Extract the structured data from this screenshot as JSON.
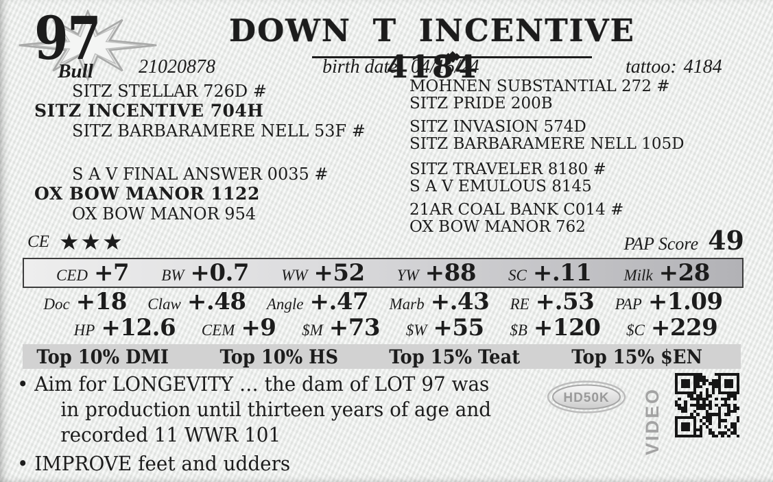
{
  "lot": {
    "number": "97",
    "sex": "Bull"
  },
  "header": {
    "title": "DOWN T INCENTIVE 4184",
    "registration": "21020878",
    "birth_date_label": "birth date:",
    "birth_date": "04/16/24",
    "tattoo_label": "tattoo:",
    "tattoo": "4184"
  },
  "pedigree": {
    "left": [
      {
        "text": "SITZ STELLAR 726D #"
      },
      {
        "text": "SITZ INCENTIVE 704H"
      },
      {
        "text": "SITZ BARBARAMERE NELL 53F #"
      },
      {
        "text": "S A V FINAL ANSWER 0035 #"
      },
      {
        "text": "OX BOW MANOR 1122"
      },
      {
        "text": "OX BOW MANOR 954"
      }
    ],
    "right": [
      "MOHNEN SUBSTANTIAL 272 #",
      "SITZ PRIDE 200B",
      "SITZ INVASION 574D",
      "SITZ BARBARAMERE NELL 105D",
      "SITZ TRAVELER 8180 #",
      "S A V EMULOUS 8145",
      "21AR COAL BANK C014 #",
      "OX BOW MANOR 762"
    ]
  },
  "ratings": {
    "ce_label": "CE",
    "ce_stars": "★★★",
    "pap_label": "PAP Score",
    "pap_value": "49"
  },
  "epds": {
    "row1": [
      {
        "label": "CED",
        "value": "+7"
      },
      {
        "label": "BW",
        "value": "+0.7"
      },
      {
        "label": "WW",
        "value": "+52"
      },
      {
        "label": "YW",
        "value": "+88"
      },
      {
        "label": "SC",
        "value": "+.11"
      },
      {
        "label": "Milk",
        "value": "+28"
      }
    ],
    "row2": [
      {
        "label": "Doc",
        "value": "+18"
      },
      {
        "label": "Claw",
        "value": "+.48"
      },
      {
        "label": "Angle",
        "value": "+.47"
      },
      {
        "label": "Marb",
        "value": "+.43"
      },
      {
        "label": "RE",
        "value": "+.53"
      },
      {
        "label": "PAP",
        "value": "+1.09"
      }
    ],
    "row3": [
      {
        "label": "HP",
        "value": "+12.6"
      },
      {
        "label": "CEM",
        "value": "+9"
      },
      {
        "label": "$M",
        "value": "+73"
      },
      {
        "label": "$W",
        "value": "+55"
      },
      {
        "label": "$B",
        "value": "+120"
      },
      {
        "label": "$C",
        "value": "+229"
      }
    ]
  },
  "tops": [
    "Top 10% DMI",
    "Top 10% HS",
    "Top 15% Teat",
    "Top 15% $EN"
  ],
  "notes": [
    "Aim for LONGEVITY … the dam of LOT 97 was in production until thirteen years of age and recorded 11 WWR 101",
    "IMPROVE feet and udders"
  ],
  "badges": {
    "hd50k": "HD50K",
    "video": "VIDEO"
  },
  "colors": {
    "ink": "#1c1c1c",
    "band_dark": "#b2b2b6",
    "top_band": "#d2d2d2",
    "logo_gray": "#9a9a9a"
  }
}
